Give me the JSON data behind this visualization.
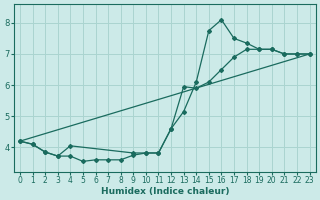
{
  "xlabel": "Humidex (Indice chaleur)",
  "background_color": "#cceae8",
  "grid_color": "#aad4d0",
  "line_color": "#1a6b5e",
  "xlim": [
    -0.5,
    23.5
  ],
  "ylim": [
    3.2,
    8.6
  ],
  "yticks": [
    4,
    5,
    6,
    7,
    8
  ],
  "xticks": [
    0,
    1,
    2,
    3,
    4,
    5,
    6,
    7,
    8,
    9,
    10,
    11,
    12,
    13,
    14,
    15,
    16,
    17,
    18,
    19,
    20,
    21,
    22,
    23
  ],
  "line1_x": [
    0,
    1,
    2,
    3,
    4,
    9,
    10,
    11,
    12,
    13,
    14,
    15,
    16,
    17,
    18,
    19,
    20,
    21,
    22,
    23
  ],
  "line1_y": [
    4.2,
    4.1,
    3.85,
    3.72,
    4.05,
    3.82,
    3.82,
    3.82,
    4.6,
    5.15,
    6.1,
    7.75,
    8.1,
    7.5,
    7.35,
    7.15,
    7.15,
    7.0,
    7.0,
    7.0
  ],
  "line2_x": [
    0,
    1,
    2,
    3,
    4,
    5,
    6,
    7,
    8,
    9,
    10,
    11,
    12,
    13,
    14,
    15,
    16,
    17,
    18,
    19,
    20,
    21,
    22,
    23
  ],
  "line2_y": [
    4.2,
    4.1,
    3.85,
    3.72,
    3.72,
    3.55,
    3.6,
    3.6,
    3.6,
    3.75,
    3.82,
    3.82,
    4.6,
    5.95,
    5.9,
    6.1,
    6.5,
    6.9,
    7.15,
    7.15,
    7.15,
    7.0,
    7.0,
    7.0
  ],
  "line3_x": [
    0,
    23
  ],
  "line3_y": [
    4.2,
    7.0
  ],
  "xlabel_fontsize": 6.5,
  "tick_fontsize": 5.5
}
